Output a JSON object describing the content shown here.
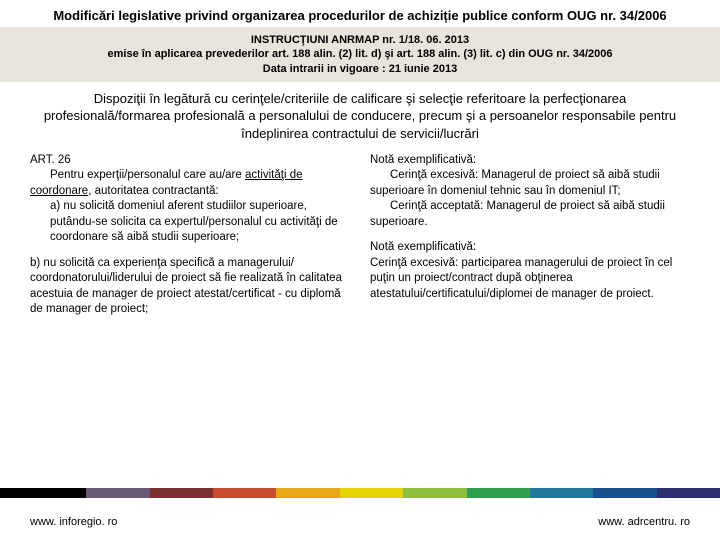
{
  "title": "Modificări legislative privind organizarea procedurilor de achiziție publice conform OUG nr. 34/2006",
  "header": {
    "line1": "INSTRUCŢIUNI ANRMAP nr. 1/18. 06. 2013",
    "line2": "emise în aplicarea prevederilor art. 188 alin. (2) lit. d) şi art. 188 alin. (3) lit. c) din OUG nr. 34/2006",
    "line3": "Data intrarii in vigoare : 21 iunie 2013"
  },
  "subtitle": "Dispoziţii în legătură cu cerinţele/criteriile de calificare şi selecţie referitoare la perfecţionarea profesională/formarea profesională a personalului de conducere, precum şi a persoanelor responsabile pentru îndeplinirea contractului de servicii/lucrări",
  "left": {
    "art": "ART. 26",
    "p1a": "Pentru experţii/personalul care au/are ",
    "p1u": "activităţi de coordonare",
    "p1b": ", autoritatea contractantă:",
    "p2": "a) nu solicită domeniul aferent studiilor superioare, putându-se solicita ca expertul/personalul cu activităţi de coordonare să aibă studii superioare;",
    "p3": "b) nu solicită ca experienţa specifică a managerului/ coordonatorului/liderului de proiect să fie realizată în calitatea acestuia de manager de proiect atestat/certificat - cu diplomă de manager de proiect;"
  },
  "right": {
    "n1t": "Notă exemplificativă:",
    "n1a": "Cerinţă excesivă: Managerul de proiect să aibă studii superioare în domeniul tehnic sau în domeniul IT;",
    "n1b": "Cerinţă acceptată: Managerul de proiect să aibă studii superioare.",
    "n2t": "Notă exemplificativă:",
    "n2a": "Cerinţă excesivă: participarea managerului de proiect în cel puţin un proiect/contract după obţinerea atestatului/certificatului/diplomei de manager de proiect."
  },
  "footer": {
    "left": "www. inforegio. ro",
    "right": "www. adrcentru. ro"
  },
  "stripe_colors": [
    "#000000",
    "#6a5a7a",
    "#7b2e2e",
    "#c84b2f",
    "#e6a817",
    "#e6d200",
    "#8fbf3f",
    "#2f9e4f",
    "#1f7a99",
    "#1a4f8f",
    "#2a2f6f"
  ],
  "colors": {
    "header_bg": "#e8e4dc",
    "text": "#000000",
    "bg": "#ffffff"
  }
}
